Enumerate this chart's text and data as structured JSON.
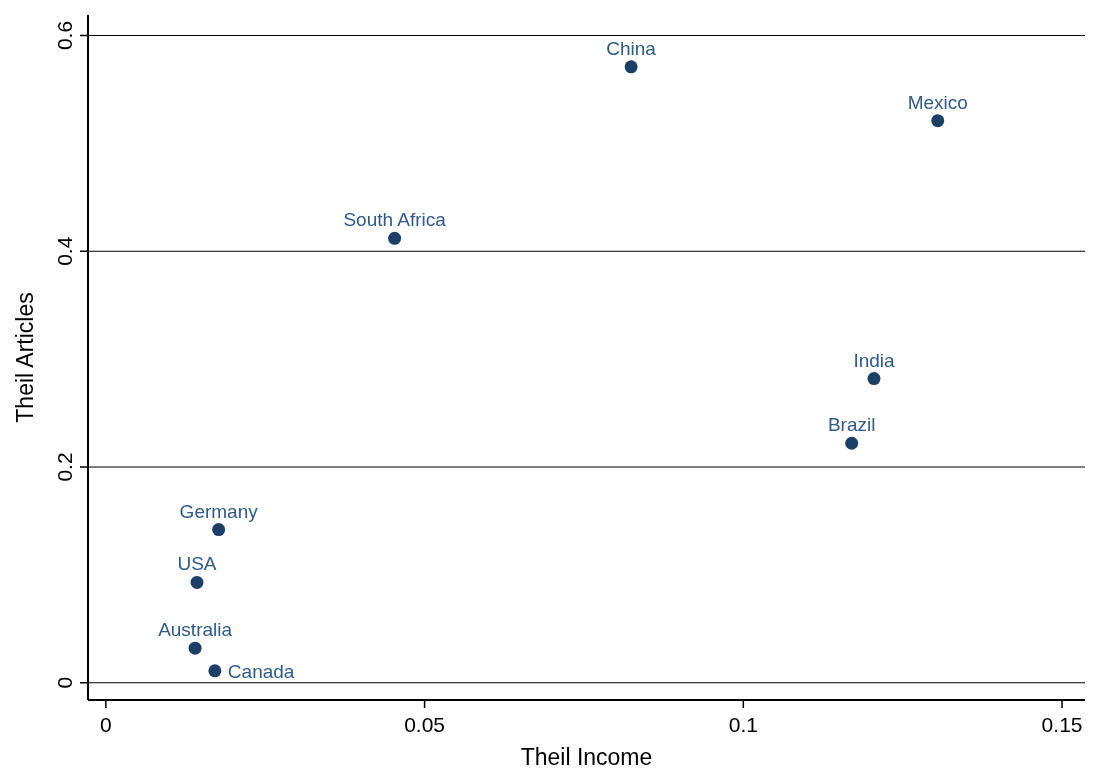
{
  "chart_data": {
    "type": "scatter",
    "xlabel": "Theil Income",
    "ylabel": "Theil Articles",
    "x": [
      0.0824,
      0.1305,
      0.0453,
      0.1205,
      0.117,
      0.0177,
      0.0143,
      0.014,
      0.0171
    ],
    "series": [
      {
        "color": "#1c3f66",
        "values": [
          0.571,
          0.521,
          0.412,
          0.282,
          0.222,
          0.142,
          0.093,
          0.032,
          0.011
        ]
      }
    ],
    "annotations": [
      {
        "text": "China",
        "x": 0.0824,
        "y": 0.571
      },
      {
        "text": "Mexico",
        "x": 0.1305,
        "y": 0.521
      },
      {
        "text": "South Africa",
        "x": 0.0453,
        "y": 0.412
      },
      {
        "text": "India",
        "x": 0.1205,
        "y": 0.282
      },
      {
        "text": "Brazil",
        "x": 0.117,
        "y": 0.222
      },
      {
        "text": "Germany",
        "x": 0.0177,
        "y": 0.142
      },
      {
        "text": "USA",
        "x": 0.0143,
        "y": 0.093
      },
      {
        "text": "Australia",
        "x": 0.014,
        "y": 0.032
      },
      {
        "text": "Canada",
        "x": 0.0171,
        "y": 0.011
      }
    ],
    "xlim": [
      -0.0028,
      0.1536
    ],
    "xticks": [
      0,
      0.05,
      0.1,
      0.15
    ],
    "ylim": [
      -0.016,
      0.619
    ],
    "yticks": [
      0,
      0.2,
      0.4,
      0.6
    ],
    "grid": "y",
    "marker": "circle"
  }
}
